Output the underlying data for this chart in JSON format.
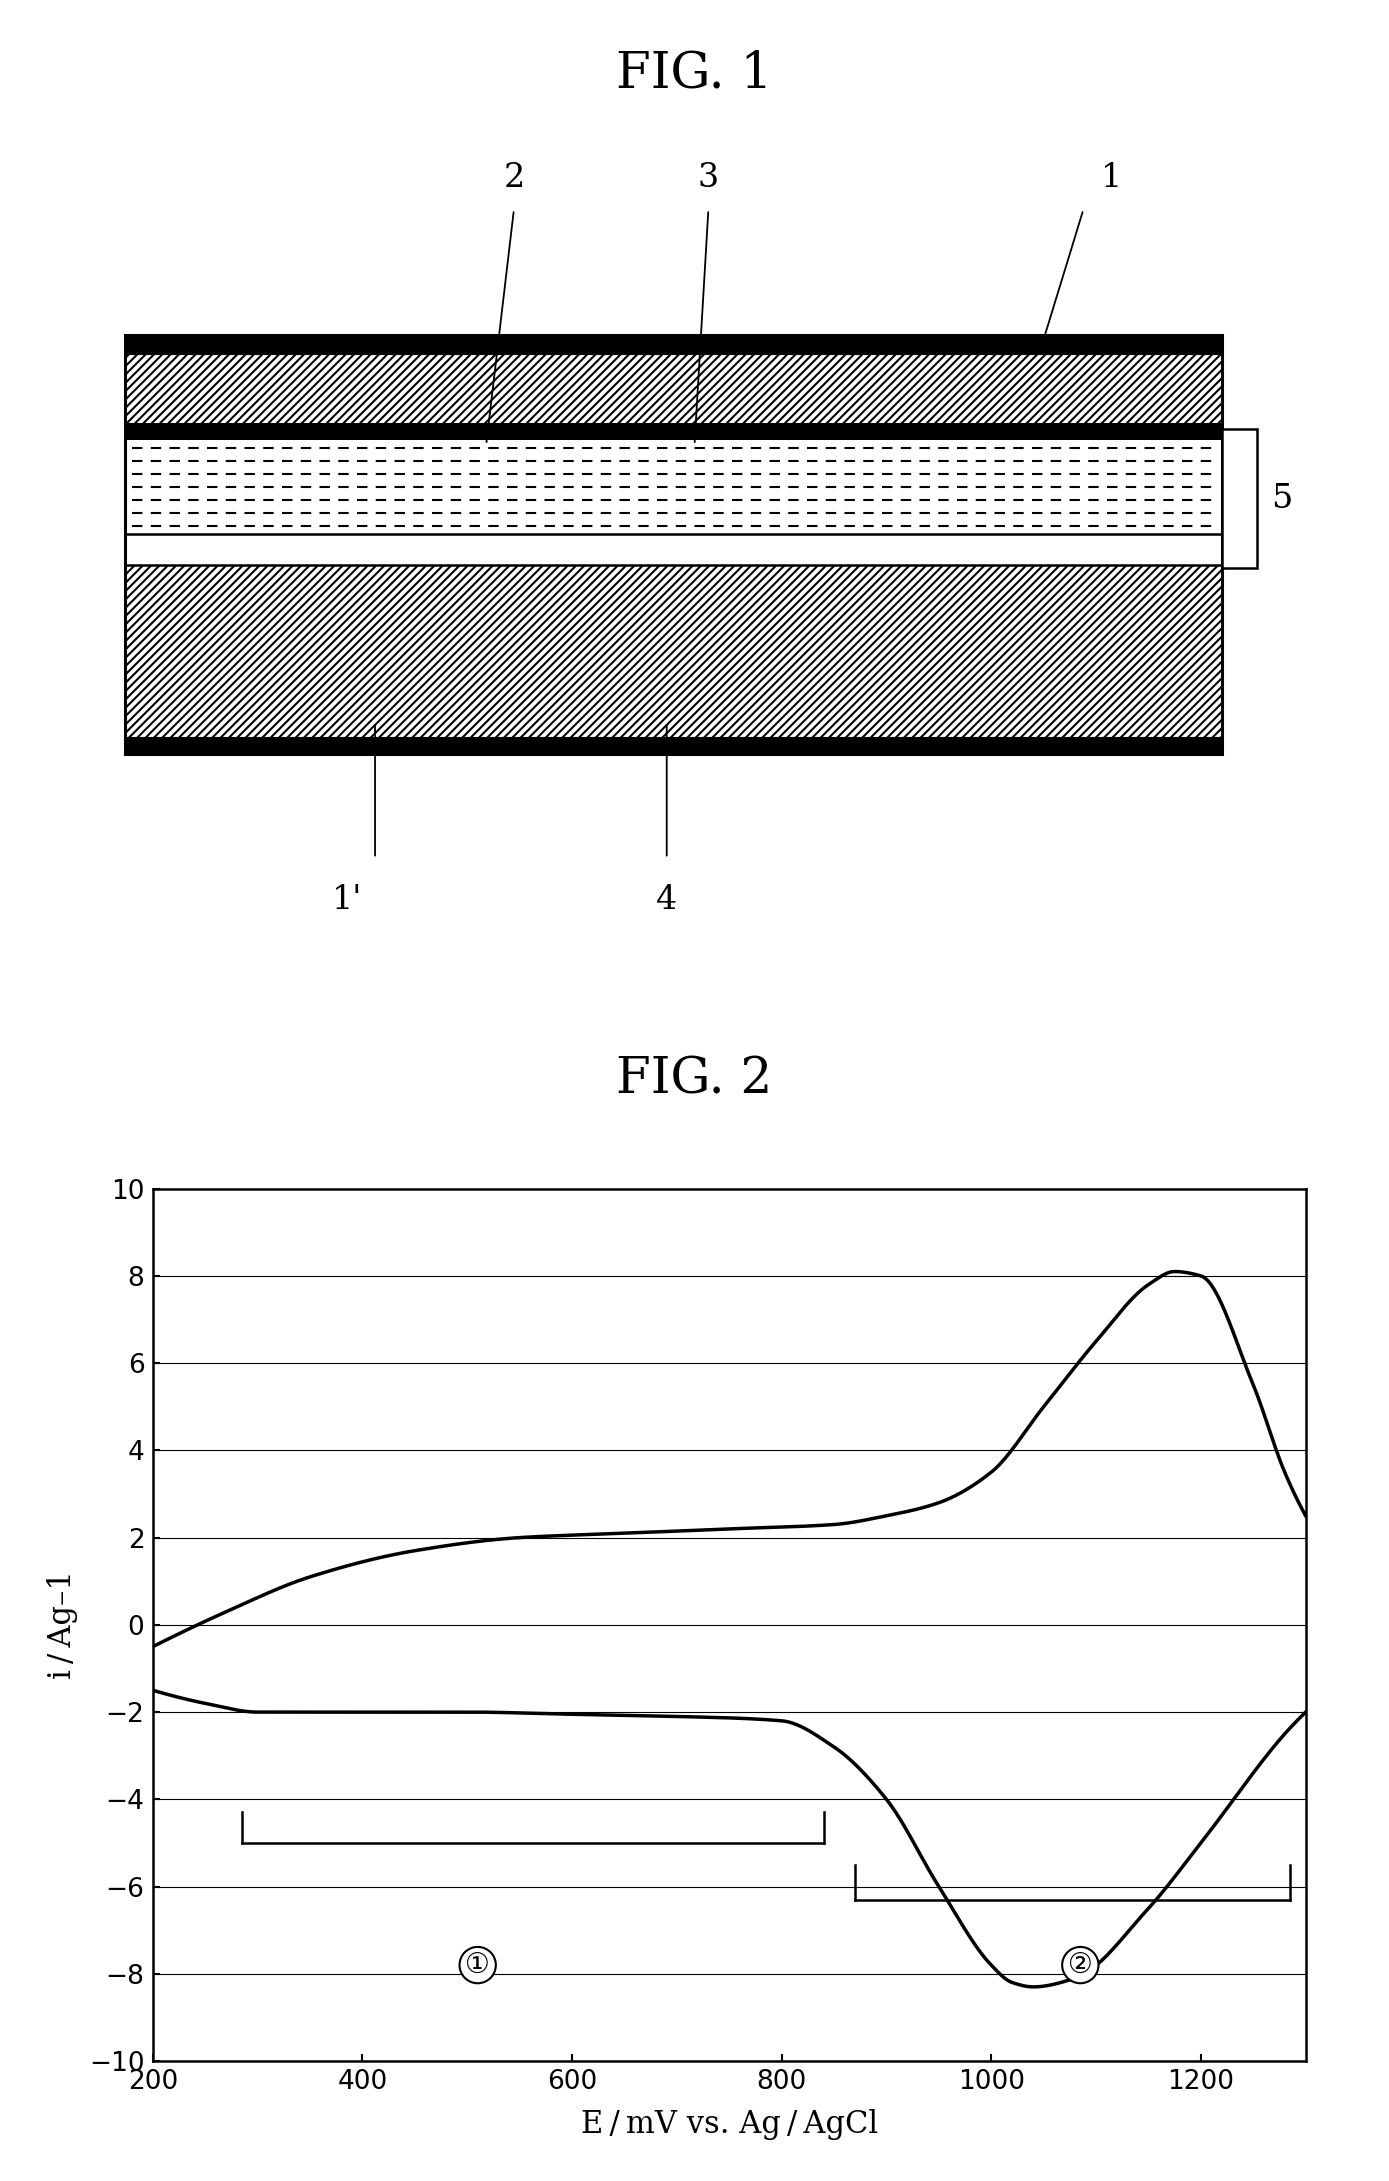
{
  "fig1_title": "FIG. 1",
  "fig2_title": "FIG. 2",
  "fig2_xlabel": "E / mV vs. Ag / AgCl",
  "fig2_ylabel": "i / Ag–1",
  "fig2_xlim": [
    200,
    1300
  ],
  "fig2_ylim": [
    -10,
    10
  ],
  "fig2_xticks": [
    200,
    400,
    600,
    800,
    1000,
    1200
  ],
  "fig2_yticks": [
    -10,
    -8,
    -6,
    -4,
    -2,
    0,
    2,
    4,
    6,
    8,
    10
  ],
  "background_color": "#ffffff",
  "line_color": "#000000",
  "upper_x": [
    200,
    270,
    350,
    450,
    550,
    650,
    750,
    850,
    900,
    950,
    1000,
    1050,
    1100,
    1150,
    1175,
    1200,
    1250,
    1280,
    1300
  ],
  "upper_y": [
    -0.5,
    0.3,
    1.1,
    1.7,
    2.0,
    2.1,
    2.2,
    2.3,
    2.5,
    2.8,
    3.5,
    5.0,
    6.5,
    7.8,
    8.1,
    8.0,
    5.5,
    3.5,
    2.5
  ],
  "lower_x": [
    200,
    250,
    300,
    400,
    500,
    600,
    700,
    800,
    850,
    900,
    950,
    1000,
    1020,
    1040,
    1080,
    1150,
    1200,
    1280,
    1300
  ],
  "lower_y": [
    -1.5,
    -1.8,
    -2.0,
    -2.0,
    -2.0,
    -2.05,
    -2.1,
    -2.2,
    -2.8,
    -4.0,
    -6.0,
    -7.8,
    -8.2,
    -8.3,
    -8.1,
    -6.5,
    -5.0,
    -2.5,
    -2.0
  ]
}
